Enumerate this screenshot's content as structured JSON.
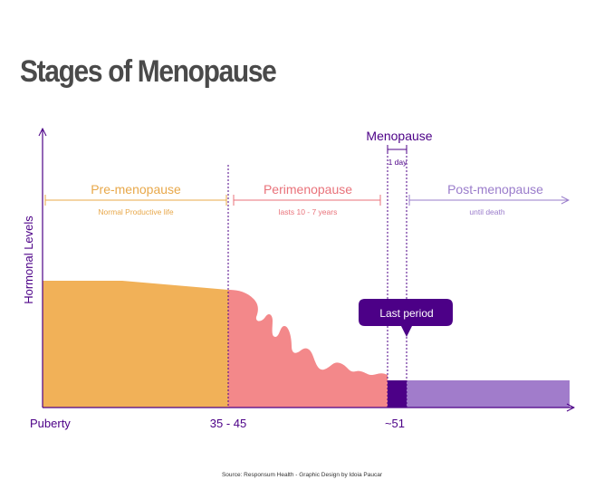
{
  "title": "Stages of Menopause",
  "source": "Source: Responsum Health  - Graphic Design by Idoia Paucar",
  "colors": {
    "pre": "#F1B158",
    "peri": "#F3888A",
    "menopause": "#4C0087",
    "post": "#A17CCB",
    "axis": "#4C0087",
    "pre_text": "#E8A84A",
    "peri_text": "#E9727A",
    "post_text": "#9A7CCB"
  },
  "chart_data": {
    "type": "area",
    "title": "Stages of Menopause",
    "xlabel": "",
    "ylabel": "Hormonal Levels",
    "x_tick_labels": [
      "Puberty",
      "35 - 45",
      "~51"
    ],
    "grid": false,
    "legend": "none",
    "stages": [
      {
        "name": "Pre-menopause",
        "description": "Normal Productive life"
      },
      {
        "name": "Perimenopause",
        "description": "lasts 10 - 7 years"
      },
      {
        "name": "Menopause",
        "description": "1 day"
      },
      {
        "name": "Post-menopause",
        "description": "until death"
      }
    ],
    "annotation": "Last period"
  }
}
